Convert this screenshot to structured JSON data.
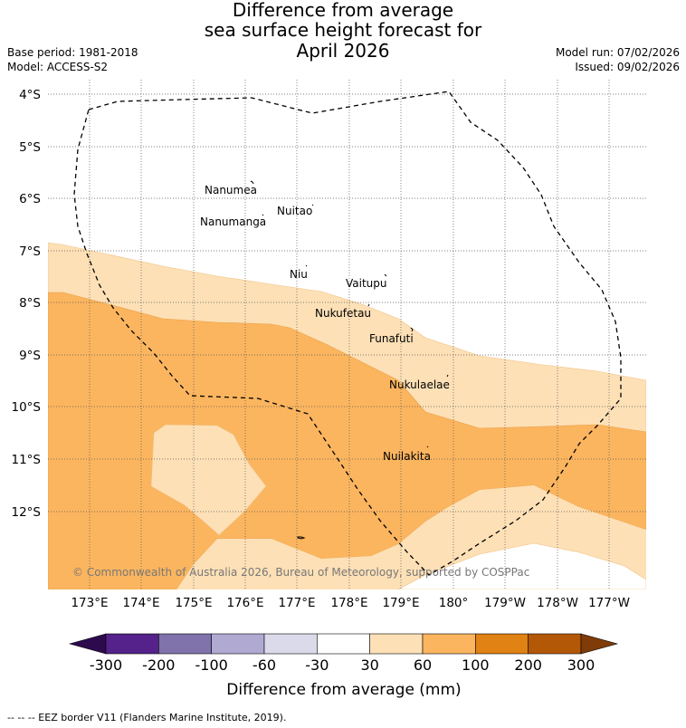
{
  "title": {
    "line1": "Difference from average",
    "line2": "sea surface height forecast for",
    "line3": "April 2026"
  },
  "meta": {
    "base_period": "Base period: 1981-2018",
    "model": "Model: ACCESS-S2",
    "model_run": "Model run: 07/02/2026",
    "issued": "Issued: 09/02/2026"
  },
  "axes": {
    "lat_ticks": [
      "4°S",
      "5°S",
      "6°S",
      "7°S",
      "8°S",
      "9°S",
      "10°S",
      "11°S",
      "12°S"
    ],
    "lon_ticks": [
      "173°E",
      "174°E",
      "175°E",
      "176°E",
      "177°E",
      "178°E",
      "179°E",
      "180°",
      "179°W",
      "178°W",
      "177°W"
    ]
  },
  "places": [
    {
      "name": "Nanumea"
    },
    {
      "name": "Nanumanga"
    },
    {
      "name": "Nuitao"
    },
    {
      "name": "Niu"
    },
    {
      "name": "Vaitupu"
    },
    {
      "name": "Nukufetau"
    },
    {
      "name": "Funafuti"
    },
    {
      "name": "Nukulaelae"
    },
    {
      "name": "Nuilakita"
    }
  ],
  "copyright": "© Commonwealth of Australia 2026, Bureau of Meteorology, supported by COSPPac",
  "colorbar": {
    "label": "Difference from average (mm)",
    "ticks": [
      "-300",
      "-200",
      "-100",
      "-60",
      "-30",
      "30",
      "60",
      "100",
      "200",
      "300"
    ],
    "colors": {
      "below": "#2d0a4e",
      "bins": [
        "#54228a",
        "#8072ab",
        "#b0aad2",
        "#dadaeb",
        "#ffffff",
        "#fde0b6",
        "#fbb55f",
        "#e08214",
        "#b35806"
      ],
      "above": "#7f3b08"
    }
  },
  "footer": "-- -- -- EEZ border V11 (Flanders Marine Institute, 2019)."
}
